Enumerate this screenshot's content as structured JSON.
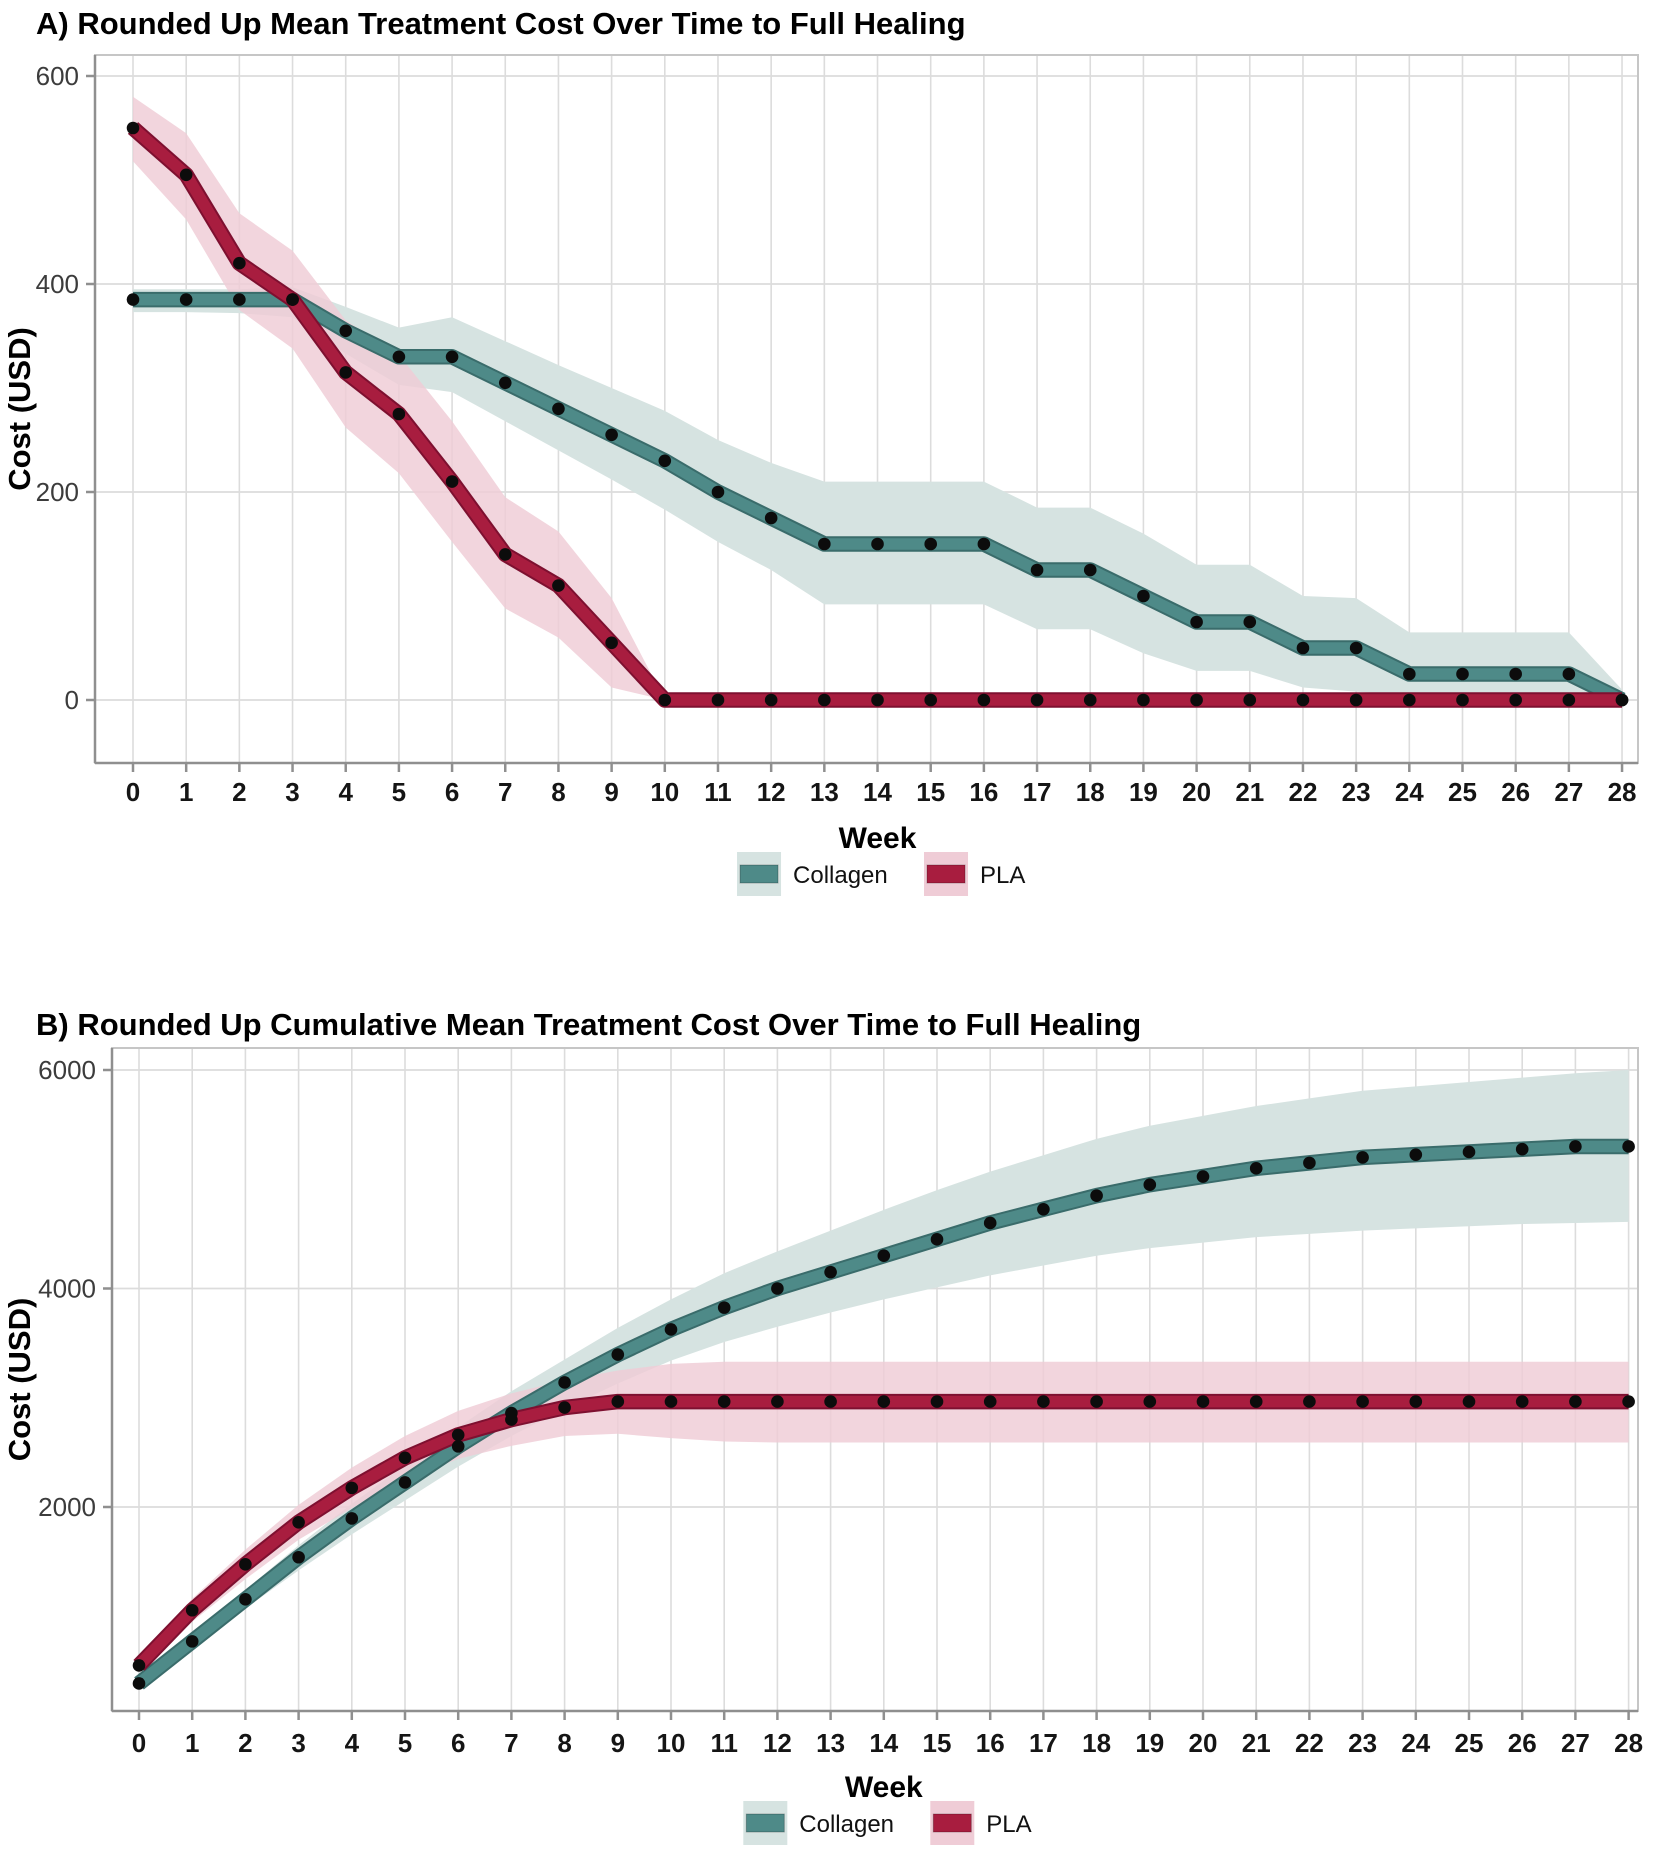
{
  "figure": {
    "background": "#ffffff"
  },
  "colors": {
    "collagen_line": "#4e8a88",
    "collagen_line_edge": "#3a6c6b",
    "collagen_band": "#d6e3e1",
    "pla_line": "#a81d3f",
    "pla_line_edge": "#7e1030",
    "pla_band": "#efccd6",
    "point": "#0c0c0c",
    "gridline": "#dcdcdc",
    "axis": "#8f8f8f",
    "panel_border": "#c6c6c6",
    "x_tick_label": "#151515",
    "y_tick_label": "#3c3c3c",
    "title": "#000000"
  },
  "chart_data": [
    {
      "panel": "A",
      "type": "line",
      "title": "A) Rounded Up Mean Treatment Cost Over Time to Full Healing",
      "xlabel": "Week",
      "ylabel": "Cost (USD)",
      "x": [
        0,
        1,
        2,
        3,
        4,
        5,
        6,
        7,
        8,
        9,
        10,
        11,
        12,
        13,
        14,
        15,
        16,
        17,
        18,
        19,
        20,
        21,
        22,
        23,
        24,
        25,
        26,
        27,
        28
      ],
      "yticks": [
        0,
        200,
        400,
        600
      ],
      "ylim": [
        -60,
        617
      ],
      "grid": true,
      "legend_position": "bottom-center",
      "series": [
        {
          "name": "Collagen",
          "values": [
            385,
            385,
            385,
            385,
            355,
            330,
            330,
            305,
            280,
            255,
            230,
            200,
            175,
            150,
            150,
            150,
            150,
            125,
            125,
            100,
            75,
            75,
            50,
            50,
            25,
            25,
            25,
            25,
            0
          ],
          "upper": [
            395,
            395,
            395,
            397,
            378,
            358,
            368,
            345,
            322,
            300,
            278,
            250,
            228,
            210,
            210,
            210,
            210,
            185,
            185,
            160,
            130,
            130,
            100,
            98,
            65,
            65,
            65,
            65,
            10
          ],
          "lower": [
            373,
            373,
            372,
            368,
            333,
            303,
            296,
            268,
            240,
            212,
            183,
            152,
            125,
            92,
            92,
            92,
            92,
            68,
            68,
            45,
            28,
            28,
            12,
            8,
            5,
            5,
            5,
            5,
            0
          ]
        },
        {
          "name": "PLA",
          "values": [
            550,
            505,
            420,
            385,
            315,
            275,
            210,
            140,
            110,
            55,
            0,
            0,
            0,
            0,
            0,
            0,
            0,
            0,
            0,
            0,
            0,
            0,
            0,
            0,
            0,
            0,
            0,
            0,
            0
          ],
          "upper": [
            580,
            545,
            468,
            432,
            365,
            332,
            268,
            195,
            162,
            98,
            0,
            0,
            0,
            0,
            0,
            0,
            0,
            0,
            0,
            0,
            0,
            0,
            0,
            0,
            0,
            0,
            0,
            0,
            0
          ],
          "lower": [
            518,
            462,
            375,
            338,
            262,
            218,
            152,
            88,
            60,
            12,
            0,
            0,
            0,
            0,
            0,
            0,
            0,
            0,
            0,
            0,
            0,
            0,
            0,
            0,
            0,
            0,
            0,
            0,
            0
          ]
        }
      ]
    },
    {
      "panel": "B",
      "type": "line",
      "title": "B) Rounded Up Cumulative Mean Treatment Cost Over Time to Full Healing",
      "xlabel": "Week",
      "ylabel": "Cost (USD)",
      "x": [
        0,
        1,
        2,
        3,
        4,
        5,
        6,
        7,
        8,
        9,
        10,
        11,
        12,
        13,
        14,
        15,
        16,
        17,
        18,
        19,
        20,
        21,
        22,
        23,
        24,
        25,
        26,
        27,
        28
      ],
      "yticks": [
        2000,
        4000,
        6000
      ],
      "ylim": [
        130,
        6200
      ],
      "grid": true,
      "legend_position": "bottom-center",
      "series": [
        {
          "name": "Collagen",
          "values": [
            385,
            770,
            1155,
            1540,
            1895,
            2225,
            2555,
            2860,
            3140,
            3395,
            3625,
            3825,
            4000,
            4150,
            4300,
            4450,
            4600,
            4725,
            4850,
            4950,
            5025,
            5100,
            5150,
            5200,
            5225,
            5250,
            5275,
            5300,
            5300
          ],
          "upper": [
            430,
            830,
            1240,
            1650,
            2030,
            2380,
            2730,
            3060,
            3350,
            3640,
            3900,
            4140,
            4340,
            4530,
            4720,
            4900,
            5070,
            5220,
            5370,
            5490,
            5580,
            5670,
            5740,
            5810,
            5850,
            5890,
            5930,
            5970,
            6000
          ],
          "lower": [
            350,
            710,
            1070,
            1420,
            1750,
            2060,
            2370,
            2650,
            2900,
            3130,
            3340,
            3510,
            3650,
            3780,
            3900,
            4010,
            4120,
            4210,
            4300,
            4370,
            4420,
            4470,
            4500,
            4530,
            4550,
            4570,
            4590,
            4600,
            4610
          ]
        },
        {
          "name": "PLA",
          "values": [
            550,
            1055,
            1475,
            1860,
            2175,
            2450,
            2660,
            2800,
            2910,
            2965,
            2965,
            2965,
            2965,
            2965,
            2965,
            2965,
            2965,
            2965,
            2965,
            2965,
            2965,
            2965,
            2965,
            2965,
            2965,
            2965,
            2965,
            2965,
            2965
          ],
          "upper": [
            610,
            1160,
            1610,
            2020,
            2360,
            2650,
            2880,
            3040,
            3160,
            3250,
            3310,
            3330,
            3330,
            3330,
            3330,
            3330,
            3330,
            3330,
            3330,
            3330,
            3330,
            3330,
            3330,
            3330,
            3330,
            3330,
            3330,
            3330,
            3330
          ],
          "lower": [
            490,
            950,
            1340,
            1700,
            1990,
            2250,
            2440,
            2560,
            2650,
            2670,
            2630,
            2600,
            2590,
            2590,
            2590,
            2590,
            2590,
            2590,
            2590,
            2590,
            2590,
            2590,
            2590,
            2590,
            2590,
            2590,
            2590,
            2590,
            2590
          ]
        }
      ]
    }
  ]
}
